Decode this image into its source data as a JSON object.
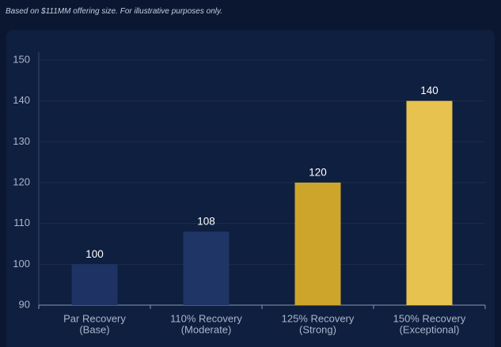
{
  "note": "Based on $111MM offering size. For illustrative purposes only.",
  "chart_data": {
    "type": "bar",
    "categories": [
      [
        "Par Recovery",
        "(Base)"
      ],
      [
        "110% Recovery",
        "(Moderate)"
      ],
      [
        "125% Recovery",
        "(Strong)"
      ],
      [
        "150% Recovery",
        "(Exceptional)"
      ]
    ],
    "values": [
      100,
      108,
      120,
      140
    ],
    "colors": [
      "#1e3263",
      "#1f3566",
      "#cda52a",
      "#e8c24e"
    ],
    "ylim": [
      90,
      150
    ],
    "yticks": [
      90,
      100,
      110,
      120,
      130,
      140,
      150
    ],
    "grid": true
  }
}
